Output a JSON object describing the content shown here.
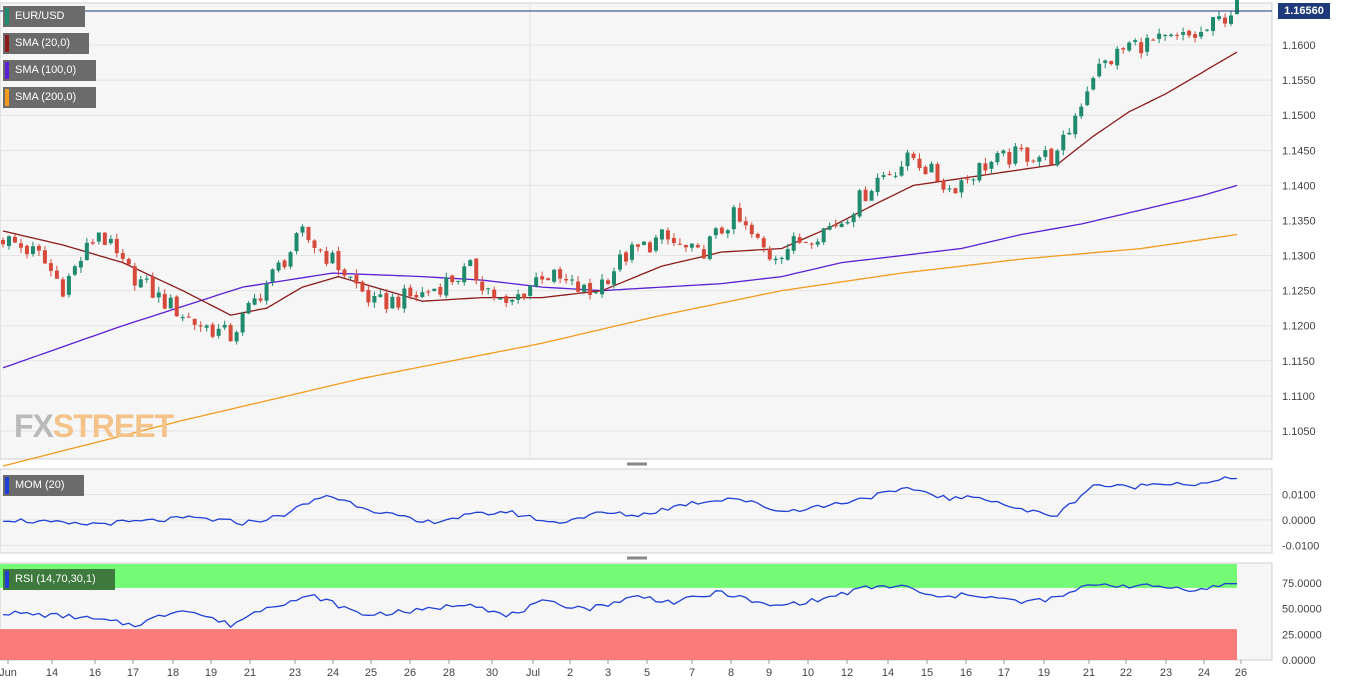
{
  "chart_title": "EUR/USD",
  "last_price_label": "1.16560",
  "logo": {
    "fx": "FX",
    "street": "STREET"
  },
  "indicators": {
    "sma20": {
      "label": "SMA (20,0)",
      "color": "#8b1a1a"
    },
    "sma100": {
      "label": "SMA (100,0)",
      "color": "#5b1fd6"
    },
    "sma200": {
      "label": "SMA (200,0)",
      "color": "#f29b1d"
    },
    "mom": {
      "label": "MOM (20)",
      "color": "#1f3fd6"
    },
    "rsi": {
      "label": "RSI (14,70,30,1)",
      "color": "#1f3fd6"
    }
  },
  "colors": {
    "bull": "#1f8a6e",
    "bear": "#d64a3b",
    "rsi_overbought": "#74fa74",
    "rsi_oversold": "#fb7a7a"
  },
  "chart_data": {
    "type": "candlestick",
    "price_axis": {
      "ticks": [
        "1.1600",
        "1.1550",
        "1.1500",
        "1.1450",
        "1.1400",
        "1.1350",
        "1.1300",
        "1.1250",
        "1.1200",
        "1.1150",
        "1.1100",
        "1.1050"
      ],
      "min": 1.101,
      "max": 1.166
    },
    "mom_axis": {
      "ticks": [
        "0.0100",
        "0.0000",
        "-0.0100"
      ],
      "min": -0.013,
      "max": 0.02
    },
    "rsi_axis": {
      "ticks": [
        "75.0000",
        "50.0000",
        "25.0000",
        "0.0000"
      ],
      "min": 0,
      "max": 100,
      "overbought": 70,
      "oversold": 30
    },
    "x_ticks": [
      "Jun",
      "14",
      "16",
      "17",
      "18",
      "19",
      "21",
      "23",
      "24",
      "25",
      "26",
      "28",
      "30",
      "Jul",
      "2",
      "3",
      "5",
      "7",
      "8",
      "9",
      "10",
      "12",
      "14",
      "15",
      "16",
      "17",
      "19",
      "21",
      "22",
      "23",
      "24",
      "26"
    ],
    "price_key": [
      [
        0,
        1.1325
      ],
      [
        6,
        1.13
      ],
      [
        10,
        1.1255
      ],
      [
        16,
        1.1335
      ],
      [
        20,
        1.1285
      ],
      [
        26,
        1.124
      ],
      [
        32,
        1.1205
      ],
      [
        38,
        1.1185
      ],
      [
        44,
        1.126
      ],
      [
        50,
        1.133
      ],
      [
        56,
        1.1285
      ],
      [
        62,
        1.123
      ],
      [
        70,
        1.1245
      ],
      [
        78,
        1.128
      ],
      [
        84,
        1.1225
      ],
      [
        90,
        1.1275
      ],
      [
        98,
        1.1245
      ],
      [
        104,
        1.13
      ],
      [
        110,
        1.1325
      ],
      [
        116,
        1.13
      ],
      [
        122,
        1.1355
      ],
      [
        128,
        1.13
      ],
      [
        134,
        1.1325
      ],
      [
        140,
        1.135
      ],
      [
        146,
        1.141
      ],
      [
        152,
        1.144
      ],
      [
        158,
        1.1395
      ],
      [
        164,
        1.143
      ],
      [
        170,
        1.1445
      ],
      [
        176,
        1.144
      ],
      [
        182,
        1.156
      ],
      [
        188,
        1.16
      ],
      [
        194,
        1.1605
      ],
      [
        200,
        1.1615
      ],
      [
        206,
        1.1655
      ]
    ],
    "mom_key": [
      [
        0,
        0.0003
      ],
      [
        12,
        -0.0018
      ],
      [
        22,
        -0.0008
      ],
      [
        32,
        0.0008
      ],
      [
        40,
        -0.0012
      ],
      [
        46,
        0.0012
      ],
      [
        54,
        0.0098
      ],
      [
        62,
        0.0038
      ],
      [
        70,
        -0.0012
      ],
      [
        78,
        0.0018
      ],
      [
        84,
        0.0033
      ],
      [
        92,
        -0.0012
      ],
      [
        100,
        0.0028
      ],
      [
        106,
        0.0018
      ],
      [
        114,
        0.0063
      ],
      [
        122,
        0.0088
      ],
      [
        130,
        0.0033
      ],
      [
        138,
        0.0058
      ],
      [
        146,
        0.0098
      ],
      [
        152,
        0.0122
      ],
      [
        158,
        0.0083
      ],
      [
        164,
        0.0088
      ],
      [
        170,
        0.0038
      ],
      [
        176,
        0.0018
      ],
      [
        182,
        0.0138
      ],
      [
        188,
        0.0128
      ],
      [
        194,
        0.0148
      ],
      [
        200,
        0.0138
      ],
      [
        206,
        0.017
      ]
    ],
    "rsi_key": [
      [
        0,
        46
      ],
      [
        12,
        42
      ],
      [
        22,
        34
      ],
      [
        30,
        50
      ],
      [
        38,
        34
      ],
      [
        44,
        52
      ],
      [
        52,
        62
      ],
      [
        60,
        44
      ],
      [
        70,
        48
      ],
      [
        78,
        56
      ],
      [
        84,
        42
      ],
      [
        90,
        56
      ],
      [
        98,
        50
      ],
      [
        106,
        62
      ],
      [
        112,
        56
      ],
      [
        120,
        66
      ],
      [
        128,
        52
      ],
      [
        136,
        58
      ],
      [
        144,
        70
      ],
      [
        150,
        72
      ],
      [
        156,
        60
      ],
      [
        162,
        64
      ],
      [
        170,
        56
      ],
      [
        176,
        60
      ],
      [
        182,
        74
      ],
      [
        188,
        72
      ],
      [
        194,
        71
      ],
      [
        200,
        68
      ],
      [
        206,
        76
      ]
    ],
    "sma20_key": [
      [
        0,
        1.1335
      ],
      [
        10,
        1.1315
      ],
      [
        20,
        1.129
      ],
      [
        30,
        1.125
      ],
      [
        38,
        1.1215
      ],
      [
        44,
        1.1225
      ],
      [
        50,
        1.1255
      ],
      [
        56,
        1.127
      ],
      [
        62,
        1.1255
      ],
      [
        70,
        1.1235
      ],
      [
        80,
        1.124
      ],
      [
        90,
        1.124
      ],
      [
        100,
        1.125
      ],
      [
        110,
        1.1285
      ],
      [
        120,
        1.1305
      ],
      [
        130,
        1.131
      ],
      [
        138,
        1.134
      ],
      [
        146,
        1.1375
      ],
      [
        152,
        1.14
      ],
      [
        160,
        1.141
      ],
      [
        168,
        1.142
      ],
      [
        176,
        1.143
      ],
      [
        182,
        1.147
      ],
      [
        188,
        1.1505
      ],
      [
        194,
        1.153
      ],
      [
        200,
        1.156
      ],
      [
        206,
        1.159
      ]
    ],
    "sma100_key": [
      [
        0,
        1.114
      ],
      [
        20,
        1.12
      ],
      [
        40,
        1.1255
      ],
      [
        55,
        1.1275
      ],
      [
        70,
        1.127
      ],
      [
        80,
        1.1265
      ],
      [
        90,
        1.1255
      ],
      [
        100,
        1.125
      ],
      [
        110,
        1.1255
      ],
      [
        120,
        1.126
      ],
      [
        130,
        1.127
      ],
      [
        140,
        1.129
      ],
      [
        150,
        1.13
      ],
      [
        160,
        1.131
      ],
      [
        170,
        1.133
      ],
      [
        180,
        1.1345
      ],
      [
        190,
        1.1365
      ],
      [
        200,
        1.1385
      ],
      [
        206,
        1.14
      ]
    ],
    "sma200_key": [
      [
        0,
        1.1
      ],
      [
        30,
        1.1065
      ],
      [
        60,
        1.1125
      ],
      [
        90,
        1.1175
      ],
      [
        110,
        1.1215
      ],
      [
        130,
        1.125
      ],
      [
        150,
        1.1275
      ],
      [
        170,
        1.1295
      ],
      [
        190,
        1.131
      ],
      [
        206,
        1.133
      ]
    ]
  }
}
